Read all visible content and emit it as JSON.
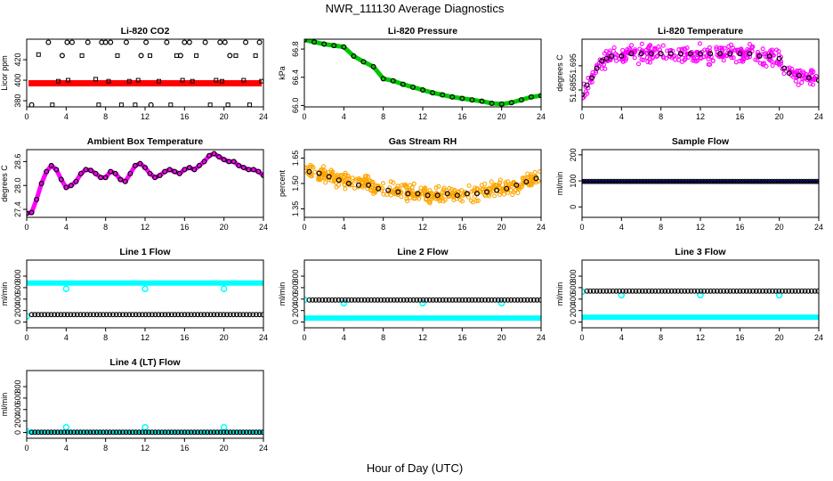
{
  "figure": {
    "title": "NWR_111130  Average Diagnostics",
    "xlabel": "Hour of Day (UTC)"
  },
  "chart_data": [
    {
      "type": "scatter",
      "title": "Li-820 CO2",
      "ylabel": "Licor ppm",
      "xlim": [
        0,
        24
      ],
      "ylim": [
        374,
        440
      ],
      "xticks": [
        0,
        4,
        8,
        12,
        16,
        20,
        24
      ],
      "yticks": [
        380,
        400,
        420
      ],
      "grid": false,
      "series": [
        {
          "kind": "band",
          "color": "#ff0000",
          "y": 397,
          "x": [
            0,
            24
          ]
        },
        {
          "kind": "open-circle",
          "color": "#000000",
          "x": [
            0.5,
            2.2,
            3.6,
            4.1,
            4.6,
            6.2,
            7.6,
            8.0,
            8.5,
            10.1,
            11.6,
            12.1,
            12.6,
            14.2,
            15.6,
            16.0,
            16.5,
            18.1,
            19.6,
            20.1,
            20.6,
            22.2,
            23.6
          ],
          "y": [
            376,
            437,
            424,
            437,
            437,
            437,
            437,
            437,
            437,
            437,
            424,
            437,
            376,
            437,
            424,
            437,
            437,
            437,
            437,
            437,
            424,
            437,
            437
          ]
        },
        {
          "kind": "open-square",
          "color": "#000000",
          "x": [
            1.2,
            2.6,
            3.2,
            4.2,
            5.6,
            7.0,
            7.3,
            8.3,
            9.2,
            9.6,
            10.4,
            11.0,
            11.3,
            12.5,
            13.4,
            14.6,
            15.2,
            15.8,
            16.8,
            17.2,
            18.6,
            19.2,
            19.8,
            20.4,
            21.2,
            22.0,
            22.6,
            23.2,
            23.8
          ],
          "y": [
            425,
            376,
            399,
            400,
            424,
            401,
            376,
            399,
            424,
            376,
            399,
            376,
            400,
            424,
            399,
            376,
            424,
            400,
            399,
            424,
            376,
            400,
            399,
            376,
            424,
            400,
            376,
            424,
            399
          ]
        }
      ]
    },
    {
      "type": "line",
      "title": "Li-820 Pressure",
      "ylabel": "kPa",
      "xlim": [
        0,
        24
      ],
      "ylim": [
        65.98,
        66.94
      ],
      "xticks": [
        0,
        4,
        8,
        12,
        16,
        20,
        24
      ],
      "yticks": [
        66.0,
        66.4,
        66.8
      ],
      "grid": false,
      "series": [
        {
          "kind": "line",
          "color": "#00c800",
          "width": 5,
          "x": [
            0,
            1,
            2,
            3,
            4,
            5,
            6,
            7,
            8,
            9,
            10,
            11,
            12,
            13,
            14,
            15,
            16,
            17,
            18,
            19,
            20,
            21,
            22,
            23,
            24
          ],
          "y": [
            66.93,
            66.9,
            66.87,
            66.85,
            66.83,
            66.7,
            66.62,
            66.55,
            66.38,
            66.35,
            66.3,
            66.26,
            66.22,
            66.18,
            66.15,
            66.12,
            66.1,
            66.08,
            66.06,
            66.03,
            66.02,
            66.04,
            66.08,
            66.12,
            66.14
          ]
        },
        {
          "kind": "open-circle",
          "color": "#000000",
          "x": [
            0,
            1,
            2,
            3,
            4,
            5,
            6,
            7,
            8,
            9,
            10,
            11,
            12,
            13,
            14,
            15,
            16,
            17,
            18,
            19,
            20,
            21,
            22,
            23,
            24
          ],
          "y": [
            66.93,
            66.9,
            66.87,
            66.85,
            66.83,
            66.7,
            66.62,
            66.55,
            66.38,
            66.35,
            66.3,
            66.26,
            66.22,
            66.18,
            66.15,
            66.12,
            66.1,
            66.08,
            66.06,
            66.03,
            66.02,
            66.04,
            66.08,
            66.12,
            66.14
          ]
        }
      ]
    },
    {
      "type": "scatter",
      "title": "Li-820 Temperature",
      "ylabel": "degrees C",
      "xlim": [
        0,
        24
      ],
      "ylim": [
        51.678,
        51.706
      ],
      "xticks": [
        0,
        4,
        8,
        12,
        16,
        20,
        24
      ],
      "yticks": [
        51.685,
        51.695
      ],
      "grid": false,
      "series": [
        {
          "kind": "scatter-cloud",
          "color": "#ff00ff",
          "count": 360,
          "spread": 0.0035,
          "x": [
            0,
            0.5,
            1,
            1.5,
            2,
            2.5,
            3,
            4,
            5,
            6,
            7,
            8,
            9,
            10,
            11,
            12,
            13,
            14,
            15,
            16,
            17,
            18,
            19,
            20,
            20.5,
            21,
            22,
            23,
            24
          ],
          "y": [
            51.683,
            51.687,
            51.69,
            51.694,
            51.697,
            51.698,
            51.699,
            51.699,
            51.7,
            51.7,
            51.7,
            51.7,
            51.7,
            51.7,
            51.7,
            51.7,
            51.7,
            51.7,
            51.7,
            51.7,
            51.7,
            51.699,
            51.699,
            51.698,
            51.694,
            51.692,
            51.691,
            51.69,
            51.689
          ]
        },
        {
          "kind": "open-circle",
          "color": "#000000",
          "x": [
            0,
            0.5,
            1,
            1.5,
            2,
            2.5,
            3,
            4,
            5,
            6,
            7,
            8,
            9,
            10,
            11,
            12,
            13,
            14,
            15,
            16,
            17,
            18,
            19,
            20,
            20.5,
            21,
            22,
            23,
            24
          ],
          "y": [
            51.683,
            51.687,
            51.69,
            51.694,
            51.697,
            51.698,
            51.699,
            51.699,
            51.7,
            51.7,
            51.7,
            51.7,
            51.7,
            51.7,
            51.7,
            51.7,
            51.7,
            51.7,
            51.7,
            51.7,
            51.7,
            51.699,
            51.699,
            51.698,
            51.694,
            51.692,
            51.691,
            51.69,
            51.689
          ]
        }
      ]
    },
    {
      "type": "line",
      "title": "Ambient Box Temperature",
      "ylabel": "degrees C",
      "xlim": [
        0,
        24
      ],
      "ylim": [
        27.2,
        28.9
      ],
      "xticks": [
        0,
        4,
        8,
        12,
        16,
        20,
        24
      ],
      "yticks": [
        27.4,
        28.0,
        28.6
      ],
      "grid": false,
      "series": [
        {
          "kind": "line",
          "color": "#ff00ff",
          "width": 5,
          "x": [
            0,
            0.5,
            1,
            1.5,
            2,
            2.5,
            3,
            3.5,
            4,
            4.5,
            5,
            5.5,
            6,
            6.5,
            7,
            7.5,
            8,
            8.5,
            9,
            9.5,
            10,
            10.5,
            11,
            11.5,
            12,
            12.5,
            13,
            13.5,
            14,
            14.5,
            15,
            15.5,
            16,
            16.5,
            17,
            17.5,
            18,
            18.5,
            19,
            19.5,
            20,
            20.5,
            21,
            21.5,
            22,
            22.5,
            23,
            23.5,
            24
          ],
          "y": [
            27.3,
            27.32,
            27.65,
            28.05,
            28.35,
            28.5,
            28.4,
            28.15,
            27.95,
            28.0,
            28.1,
            28.3,
            28.4,
            28.38,
            28.3,
            28.2,
            28.2,
            28.35,
            28.3,
            28.15,
            28.1,
            28.3,
            28.5,
            28.55,
            28.45,
            28.3,
            28.2,
            28.25,
            28.35,
            28.4,
            28.35,
            28.3,
            28.4,
            28.45,
            28.4,
            28.5,
            28.6,
            28.75,
            28.8,
            28.72,
            28.65,
            28.6,
            28.6,
            28.5,
            28.45,
            28.4,
            28.4,
            28.35,
            28.25
          ]
        },
        {
          "kind": "open-circle",
          "color": "#000000",
          "x": [
            0,
            0.5,
            1,
            1.5,
            2,
            2.5,
            3,
            3.5,
            4,
            4.5,
            5,
            5.5,
            6,
            6.5,
            7,
            7.5,
            8,
            8.5,
            9,
            9.5,
            10,
            10.5,
            11,
            11.5,
            12,
            12.5,
            13,
            13.5,
            14,
            14.5,
            15,
            15.5,
            16,
            16.5,
            17,
            17.5,
            18,
            18.5,
            19,
            19.5,
            20,
            20.5,
            21,
            21.5,
            22,
            22.5,
            23,
            23.5,
            24
          ],
          "y": [
            27.3,
            27.32,
            27.65,
            28.05,
            28.35,
            28.5,
            28.4,
            28.15,
            27.95,
            28.0,
            28.1,
            28.3,
            28.4,
            28.38,
            28.3,
            28.2,
            28.2,
            28.35,
            28.3,
            28.15,
            28.1,
            28.3,
            28.5,
            28.55,
            28.45,
            28.3,
            28.2,
            28.25,
            28.35,
            28.4,
            28.35,
            28.3,
            28.4,
            28.45,
            28.4,
            28.5,
            28.6,
            28.75,
            28.8,
            28.72,
            28.65,
            28.6,
            28.6,
            28.5,
            28.45,
            28.4,
            28.4,
            28.35,
            28.25
          ]
        }
      ]
    },
    {
      "type": "scatter",
      "title": "Gas Stream RH",
      "ylabel": "percent",
      "xlim": [
        0,
        24
      ],
      "ylim": [
        1.3,
        1.7
      ],
      "xticks": [
        0,
        4,
        8,
        12,
        16,
        20,
        24
      ],
      "yticks": [
        1.35,
        1.5,
        1.65
      ],
      "grid": false,
      "series": [
        {
          "kind": "scatter-cloud",
          "color": "#ffa500",
          "count": 420,
          "spread": 0.045,
          "x": [
            0,
            1,
            2,
            3,
            4,
            5,
            6,
            7,
            8,
            9,
            10,
            11,
            12,
            13,
            14,
            15,
            16,
            17,
            18,
            19,
            20,
            21,
            22,
            23,
            24
          ],
          "y": [
            1.58,
            1.56,
            1.55,
            1.53,
            1.52,
            1.5,
            1.5,
            1.48,
            1.47,
            1.46,
            1.45,
            1.44,
            1.44,
            1.43,
            1.43,
            1.43,
            1.44,
            1.44,
            1.45,
            1.46,
            1.47,
            1.48,
            1.5,
            1.52,
            1.54
          ]
        },
        {
          "kind": "open-circle",
          "color": "#000000",
          "x": [
            0.5,
            1.5,
            2.5,
            3.5,
            4.5,
            5.5,
            6.5,
            7.5,
            8.5,
            9.5,
            10.5,
            11.5,
            12.5,
            13.5,
            14.5,
            15.5,
            16.5,
            17.5,
            18.5,
            19.5,
            20.5,
            21.5,
            22.5,
            23.5
          ],
          "y": [
            1.57,
            1.56,
            1.54,
            1.52,
            1.5,
            1.49,
            1.49,
            1.47,
            1.46,
            1.45,
            1.44,
            1.44,
            1.43,
            1.43,
            1.44,
            1.43,
            1.44,
            1.44,
            1.45,
            1.46,
            1.47,
            1.49,
            1.51,
            1.53
          ]
        }
      ]
    },
    {
      "type": "line",
      "title": "Sample Flow",
      "ylabel": "ml/min",
      "xlim": [
        0,
        24
      ],
      "ylim": [
        -40,
        220
      ],
      "xticks": [
        0,
        4,
        8,
        12,
        16,
        20,
        24
      ],
      "yticks": [
        0,
        100,
        200
      ],
      "grid": false,
      "series": [
        {
          "kind": "line",
          "color": "#0000ff",
          "width": 3,
          "x": [
            0,
            24
          ],
          "y": [
            98,
            98
          ]
        },
        {
          "kind": "open-circle-row",
          "color": "#000000",
          "from": 0,
          "to": 24,
          "step": 0.25,
          "y": 98
        }
      ]
    },
    {
      "type": "line",
      "title": "Line 1 Flow",
      "ylabel": "ml/min",
      "xlim": [
        0,
        24
      ],
      "ylim": [
        -100,
        1080
      ],
      "xticks": [
        0,
        4,
        8,
        12,
        16,
        20,
        24
      ],
      "yticks": [
        0,
        200,
        400,
        600,
        800
      ],
      "grid": false,
      "series": [
        {
          "kind": "line",
          "color": "#00ffff",
          "width": 6,
          "x": [
            0,
            24
          ],
          "y": [
            680,
            680
          ]
        },
        {
          "kind": "point",
          "color": "#00ffff",
          "x": [
            0,
            4,
            12,
            20
          ],
          "y": [
            100,
            580,
            580,
            580
          ]
        },
        {
          "kind": "open-circle-row",
          "color": "#000000",
          "from": 0.5,
          "to": 24,
          "step": 0.33,
          "y": 130
        }
      ]
    },
    {
      "type": "line",
      "title": "Line 2 Flow",
      "ylabel": "ml/min",
      "xlim": [
        0,
        24
      ],
      "ylim": [
        -100,
        1080
      ],
      "xticks": [
        0,
        4,
        8,
        12,
        16,
        20,
        24
      ],
      "yticks": [
        0,
        200,
        400,
        600,
        800
      ],
      "grid": false,
      "series": [
        {
          "kind": "line",
          "color": "#00ffff",
          "width": 6,
          "x": [
            0,
            24
          ],
          "y": [
            70,
            70
          ]
        },
        {
          "kind": "point",
          "color": "#00ffff",
          "x": [
            0,
            4,
            12,
            20
          ],
          "y": [
            390,
            330,
            330,
            330
          ]
        },
        {
          "kind": "open-circle-row",
          "color": "#000000",
          "from": 0.5,
          "to": 24,
          "step": 0.33,
          "y": 385
        }
      ]
    },
    {
      "type": "line",
      "title": "Line 3 Flow",
      "ylabel": "ml/min",
      "xlim": [
        0,
        24
      ],
      "ylim": [
        -100,
        1080
      ],
      "xticks": [
        0,
        4,
        8,
        12,
        16,
        20,
        24
      ],
      "yticks": [
        0,
        200,
        400,
        600,
        800
      ],
      "grid": false,
      "series": [
        {
          "kind": "line",
          "color": "#00ffff",
          "width": 6,
          "x": [
            0,
            24
          ],
          "y": [
            85,
            85
          ]
        },
        {
          "kind": "point",
          "color": "#00ffff",
          "x": [
            0,
            4,
            12,
            20
          ],
          "y": [
            530,
            470,
            470,
            470
          ]
        },
        {
          "kind": "open-circle-row",
          "color": "#000000",
          "from": 0.5,
          "to": 24,
          "step": 0.33,
          "y": 540
        }
      ]
    },
    {
      "type": "line",
      "title": "Line 4 (LT) Flow",
      "ylabel": "ml/min",
      "xlim": [
        0,
        24
      ],
      "ylim": [
        -100,
        1080
      ],
      "xticks": [
        0,
        4,
        8,
        12,
        16,
        20,
        24
      ],
      "yticks": [
        0,
        200,
        400,
        600,
        800
      ],
      "grid": false,
      "series": [
        {
          "kind": "line",
          "color": "#00ffff",
          "width": 4,
          "x": [
            0,
            24
          ],
          "y": [
            5,
            5
          ]
        },
        {
          "kind": "point",
          "color": "#00ffff",
          "x": [
            0,
            4,
            12,
            20
          ],
          "y": [
            20,
            90,
            90,
            90
          ]
        },
        {
          "kind": "open-circle-row",
          "color": "#000000",
          "from": 0.5,
          "to": 24,
          "step": 0.33,
          "y": 5
        }
      ]
    }
  ]
}
